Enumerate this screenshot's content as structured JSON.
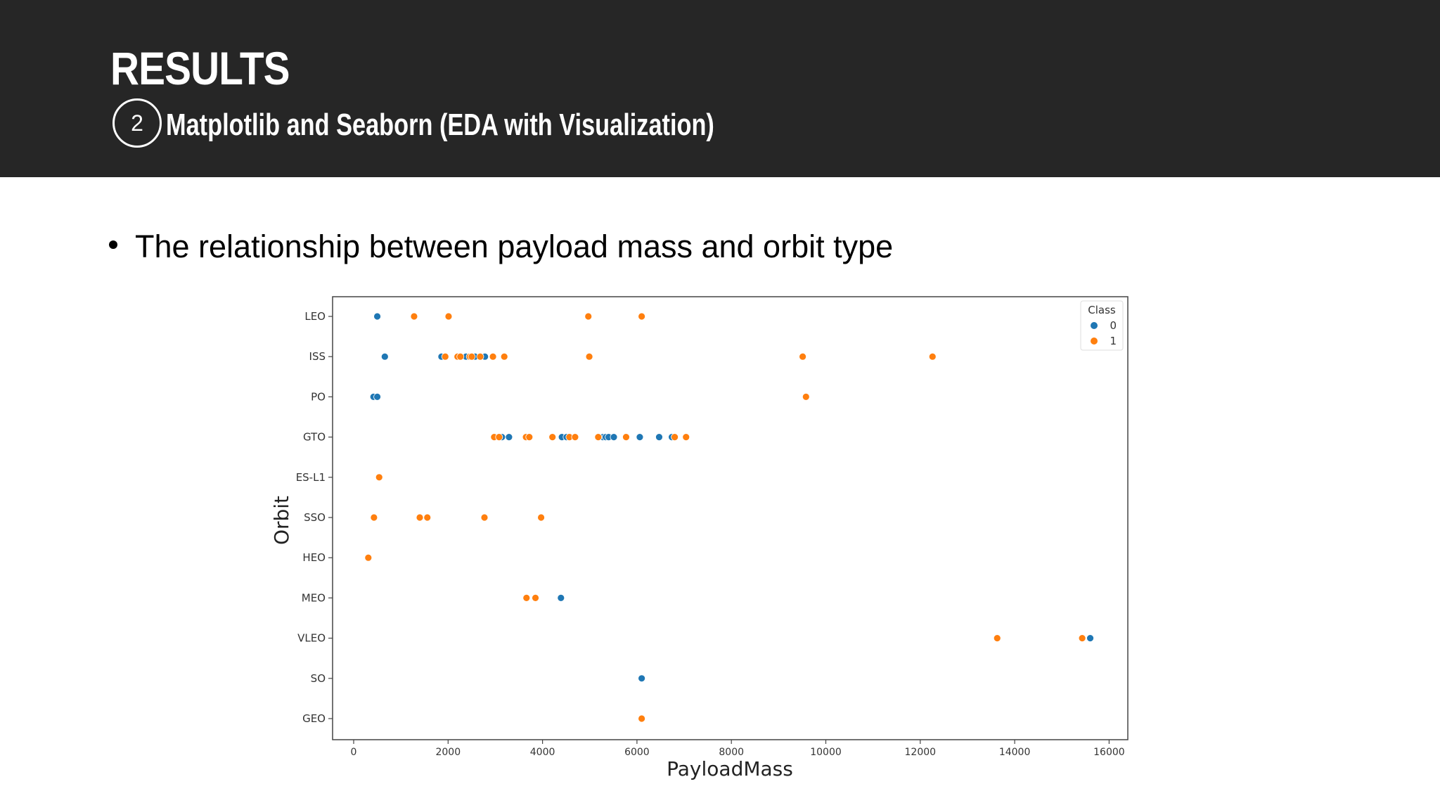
{
  "slide": {
    "title": "RESULTS",
    "step_number": "2",
    "subtitle": "Matplotlib and Seaborn (EDA with Visualization)",
    "bullet": "The relationship between payload mass and orbit type"
  },
  "colors": {
    "header_bg": "#262626",
    "class_0": "#1f77b4",
    "class_1": "#ff7f0e"
  },
  "chart_data": {
    "type": "scatter",
    "title": "",
    "xlabel": "PayloadMass",
    "ylabel": "Orbit",
    "xlim": [
      -500,
      16400
    ],
    "x_ticks": [
      0,
      2000,
      4000,
      6000,
      8000,
      10000,
      12000,
      14000,
      16000
    ],
    "categories": [
      "LEO",
      "ISS",
      "PO",
      "GTO",
      "ES-L1",
      "SSO",
      "HEO",
      "MEO",
      "VLEO",
      "SO",
      "GEO"
    ],
    "grid": false,
    "legend": {
      "title": "Class",
      "position": "upper right",
      "entries": [
        "0",
        "1"
      ]
    },
    "series": [
      {
        "name": "0",
        "color": "#1f77b4",
        "points": [
          {
            "x": 500,
            "y": "LEO"
          },
          {
            "x": 660,
            "y": "ISS"
          },
          {
            "x": 1860,
            "y": "ISS"
          },
          {
            "x": 2380,
            "y": "ISS"
          },
          {
            "x": 2570,
            "y": "ISS"
          },
          {
            "x": 2780,
            "y": "ISS"
          },
          {
            "x": 420,
            "y": "PO"
          },
          {
            "x": 500,
            "y": "PO"
          },
          {
            "x": 3140,
            "y": "GTO"
          },
          {
            "x": 3290,
            "y": "GTO"
          },
          {
            "x": 4410,
            "y": "GTO"
          },
          {
            "x": 4510,
            "y": "GTO"
          },
          {
            "x": 5280,
            "y": "GTO"
          },
          {
            "x": 5340,
            "y": "GTO"
          },
          {
            "x": 5400,
            "y": "GTO"
          },
          {
            "x": 5510,
            "y": "GTO"
          },
          {
            "x": 6060,
            "y": "GTO"
          },
          {
            "x": 6470,
            "y": "GTO"
          },
          {
            "x": 6740,
            "y": "GTO"
          },
          {
            "x": 4390,
            "y": "MEO"
          },
          {
            "x": 15600,
            "y": "VLEO"
          },
          {
            "x": 6100,
            "y": "SO"
          }
        ]
      },
      {
        "name": "1",
        "color": "#ff7f0e",
        "points": [
          {
            "x": 1280,
            "y": "LEO"
          },
          {
            "x": 2010,
            "y": "LEO"
          },
          {
            "x": 4970,
            "y": "LEO"
          },
          {
            "x": 6100,
            "y": "LEO"
          },
          {
            "x": 1940,
            "y": "ISS"
          },
          {
            "x": 2200,
            "y": "ISS"
          },
          {
            "x": 2260,
            "y": "ISS"
          },
          {
            "x": 2460,
            "y": "ISS"
          },
          {
            "x": 2500,
            "y": "ISS"
          },
          {
            "x": 2680,
            "y": "ISS"
          },
          {
            "x": 2950,
            "y": "ISS"
          },
          {
            "x": 3190,
            "y": "ISS"
          },
          {
            "x": 4990,
            "y": "ISS"
          },
          {
            "x": 9510,
            "y": "ISS"
          },
          {
            "x": 12260,
            "y": "ISS"
          },
          {
            "x": 9580,
            "y": "PO"
          },
          {
            "x": 2976,
            "y": "GTO"
          },
          {
            "x": 3080,
            "y": "GTO"
          },
          {
            "x": 3650,
            "y": "GTO"
          },
          {
            "x": 3720,
            "y": "GTO"
          },
          {
            "x": 4210,
            "y": "GTO"
          },
          {
            "x": 4570,
            "y": "GTO"
          },
          {
            "x": 4690,
            "y": "GTO"
          },
          {
            "x": 5180,
            "y": "GTO"
          },
          {
            "x": 5770,
            "y": "GTO"
          },
          {
            "x": 6800,
            "y": "GTO"
          },
          {
            "x": 7040,
            "y": "GTO"
          },
          {
            "x": 540,
            "y": "ES-L1"
          },
          {
            "x": 430,
            "y": "SSO"
          },
          {
            "x": 1400,
            "y": "SSO"
          },
          {
            "x": 1560,
            "y": "SSO"
          },
          {
            "x": 2770,
            "y": "SSO"
          },
          {
            "x": 3970,
            "y": "SSO"
          },
          {
            "x": 310,
            "y": "HEO"
          },
          {
            "x": 3660,
            "y": "MEO"
          },
          {
            "x": 3850,
            "y": "MEO"
          },
          {
            "x": 13630,
            "y": "VLEO"
          },
          {
            "x": 15430,
            "y": "VLEO"
          },
          {
            "x": 6100,
            "y": "GEO"
          }
        ]
      }
    ]
  }
}
